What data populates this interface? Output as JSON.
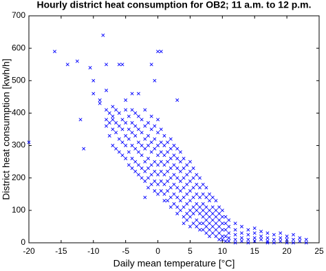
{
  "chart_data": {
    "type": "scatter",
    "title": "Hourly district heat consumption for OB2; 11 a.m. to 12 p.m.",
    "x_label": "Daily mean temperature [°C]",
    "y_label": "District heat consumption [kwh/h]",
    "xlim": [
      -20,
      25
    ],
    "ylim": [
      0,
      700
    ],
    "xticks": [
      -20,
      -15,
      -10,
      -5,
      0,
      5,
      10,
      15,
      20,
      25
    ],
    "yticks": [
      0,
      100,
      200,
      300,
      400,
      500,
      600,
      700
    ],
    "grid": false,
    "series": [
      {
        "color": "#0000ff",
        "marker": "x",
        "x": [
          -20,
          -16,
          -14,
          -12.5,
          -11.5,
          -12,
          -10.5,
          -10,
          -10,
          -9,
          -8.5,
          -8,
          -8,
          -7,
          -6,
          -5.5,
          -5,
          -4,
          -3,
          -2,
          -1,
          0,
          0.5,
          -0.5,
          3,
          -7,
          -9,
          -8,
          -8,
          -8,
          -7.5,
          -7.5,
          -7.5,
          -7,
          -7,
          -7,
          -6.5,
          -6.5,
          -6.5,
          -6.5,
          -6,
          -6,
          -6,
          -6,
          -5.5,
          -5.5,
          -5.5,
          -5.5,
          -5,
          -5,
          -5,
          -5,
          -5,
          -4.5,
          -4.5,
          -4.5,
          -4.5,
          -4.5,
          -4,
          -4,
          -4,
          -4,
          -4,
          -4,
          -3.5,
          -3.5,
          -3.5,
          -3.5,
          -3.5,
          -3.5,
          -3,
          -3,
          -3,
          -3,
          -3,
          -3,
          -2.5,
          -2.5,
          -2.5,
          -2.5,
          -2.5,
          -2.5,
          -2,
          -2,
          -2,
          -2,
          -2,
          -2,
          -2,
          -1.5,
          -1.5,
          -1.5,
          -1.5,
          -1.5,
          -1.5,
          -1.5,
          -1,
          -1,
          -1,
          -1,
          -1,
          -1,
          -1,
          -0.5,
          -0.5,
          -0.5,
          -0.5,
          -0.5,
          -0.5,
          -0.5,
          0,
          0,
          0,
          0,
          0,
          0,
          0,
          0,
          0.5,
          0.5,
          0.5,
          0.5,
          0.5,
          0.5,
          0.5,
          1,
          1,
          1,
          1,
          1,
          1,
          1,
          1,
          1.5,
          1.5,
          1.5,
          1.5,
          1.5,
          1.5,
          1.5,
          2,
          2,
          2,
          2,
          2,
          2,
          2,
          2,
          2.5,
          2.5,
          2.5,
          2.5,
          2.5,
          2.5,
          2.5,
          3,
          3,
          3,
          3,
          3,
          3,
          3,
          3,
          3.5,
          3.5,
          3.5,
          3.5,
          3.5,
          3.5,
          3.5,
          4,
          4,
          4,
          4,
          4,
          4,
          4,
          4,
          4.5,
          4.5,
          4.5,
          4.5,
          4.5,
          4.5,
          4.5,
          5,
          5,
          5,
          5,
          5,
          5,
          5,
          5,
          5.5,
          5.5,
          5.5,
          5.5,
          5.5,
          5.5,
          5.5,
          6,
          6,
          6,
          6,
          6,
          6,
          6,
          6.5,
          6.5,
          6.5,
          6.5,
          6.5,
          6.5,
          6.5,
          7,
          7,
          7,
          7,
          7,
          7,
          7,
          7.5,
          7.5,
          7.5,
          7.5,
          7.5,
          7.5,
          7.5,
          8,
          8,
          8,
          8,
          8,
          8,
          8,
          8.5,
          8.5,
          8.5,
          8.5,
          8.5,
          8.5,
          9,
          9,
          9,
          9,
          9,
          9,
          9.5,
          9.5,
          9.5,
          9.5,
          9.5,
          9.5,
          10,
          10,
          10,
          10,
          10,
          10,
          10.5,
          10.5,
          10.5,
          10.5,
          10.5,
          11,
          11,
          11,
          11,
          11,
          12,
          12,
          12,
          12,
          12,
          13,
          13,
          13,
          13,
          14,
          14,
          14,
          14,
          15,
          15,
          15,
          15,
          16,
          16,
          16,
          17,
          17,
          17,
          17,
          18,
          18,
          18,
          19,
          19,
          19,
          20,
          20,
          20,
          21,
          21,
          21,
          22,
          22,
          23,
          23
        ],
        "y": [
          310,
          590,
          550,
          560,
          290,
          380,
          540,
          500,
          460,
          440,
          640,
          550,
          470,
          380,
          550,
          550,
          440,
          460,
          460,
          140,
          550,
          590,
          590,
          500,
          440,
          420,
          430,
          410,
          380,
          360,
          400,
          370,
          330,
          390,
          350,
          300,
          410,
          370,
          340,
          290,
          400,
          360,
          320,
          280,
          380,
          350,
          310,
          270,
          410,
          370,
          330,
          300,
          260,
          390,
          350,
          320,
          280,
          240,
          410,
          370,
          340,
          300,
          260,
          230,
          400,
          360,
          330,
          290,
          250,
          220,
          390,
          350,
          310,
          280,
          240,
          210,
          380,
          340,
          300,
          270,
          230,
          200,
          410,
          360,
          320,
          290,
          250,
          220,
          190,
          370,
          330,
          300,
          260,
          230,
          200,
          170,
          390,
          350,
          310,
          280,
          240,
          210,
          180,
          360,
          320,
          290,
          250,
          220,
          190,
          160,
          380,
          340,
          300,
          270,
          240,
          210,
          180,
          150,
          350,
          310,
          280,
          250,
          220,
          190,
          160,
          330,
          300,
          270,
          240,
          210,
          180,
          150,
          130,
          310,
          280,
          250,
          220,
          190,
          160,
          130,
          320,
          290,
          260,
          230,
          200,
          170,
          140,
          110,
          300,
          270,
          240,
          210,
          180,
          150,
          120,
          290,
          260,
          230,
          200,
          170,
          140,
          110,
          90,
          280,
          250,
          220,
          190,
          160,
          130,
          100,
          260,
          230,
          200,
          170,
          140,
          110,
          80,
          60,
          240,
          210,
          180,
          150,
          120,
          90,
          70,
          250,
          220,
          190,
          160,
          130,
          100,
          80,
          50,
          230,
          200,
          170,
          140,
          110,
          90,
          60,
          210,
          180,
          150,
          120,
          100,
          70,
          50,
          200,
          170,
          140,
          110,
          90,
          60,
          40,
          180,
          150,
          120,
          100,
          80,
          60,
          40,
          170,
          140,
          110,
          90,
          70,
          50,
          30,
          150,
          130,
          100,
          80,
          60,
          40,
          20,
          140,
          110,
          90,
          70,
          50,
          30,
          130,
          100,
          80,
          60,
          40,
          20,
          110,
          90,
          70,
          50,
          30,
          10,
          100,
          80,
          60,
          40,
          20,
          10,
          80,
          60,
          40,
          20,
          5,
          70,
          50,
          30,
          15,
          5,
          60,
          40,
          25,
          10,
          0,
          50,
          30,
          15,
          5,
          40,
          25,
          10,
          0,
          45,
          30,
          15,
          5,
          35,
          20,
          10,
          30,
          15,
          5,
          0,
          25,
          10,
          0,
          30,
          15,
          5,
          20,
          10,
          0,
          25,
          10,
          0,
          15,
          5,
          10,
          0
        ]
      }
    ]
  }
}
